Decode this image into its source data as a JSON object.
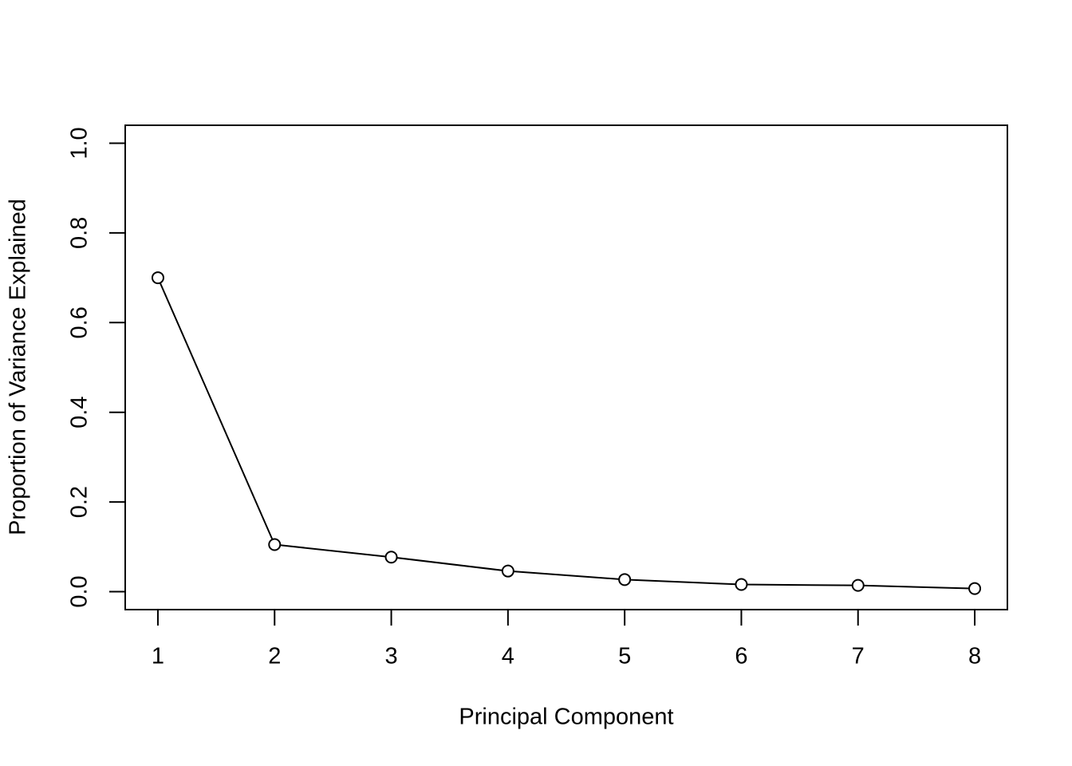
{
  "chart_data": {
    "type": "line",
    "x_label": "Principal Component",
    "y_label": "Proportion of Variance Explained",
    "x": [
      1,
      2,
      3,
      4,
      5,
      6,
      7,
      8
    ],
    "values": [
      0.7,
      0.105,
      0.077,
      0.046,
      0.027,
      0.016,
      0.014,
      0.007
    ],
    "color": "#000000",
    "xlim": [
      0.72,
      8.28
    ],
    "xticks": [
      1,
      2,
      3,
      4,
      5,
      6,
      7,
      8
    ],
    "ylim": [
      -0.04,
      1.04
    ],
    "yticks": [
      {
        "value": 0,
        "label": "0.0"
      },
      {
        "value": 0.2,
        "label": "0.2"
      },
      {
        "value": 0.4,
        "label": "0.4"
      },
      {
        "value": 0.6,
        "label": "0.6"
      },
      {
        "value": 0.8,
        "label": "0.8"
      },
      {
        "value": 1,
        "label": "1.0"
      }
    ],
    "grid": false
  }
}
